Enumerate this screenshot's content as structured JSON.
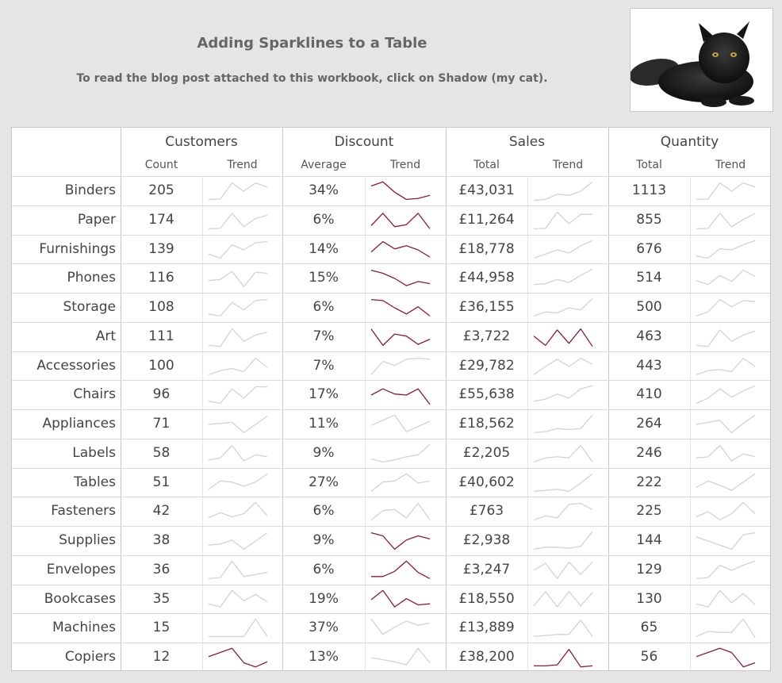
{
  "header": {
    "title": "Adding Sparklines to a Table",
    "subtitle": "To read the blog post attached to this workbook, click on Shadow (my cat)."
  },
  "cat_image": {
    "icon": "cat-photo"
  },
  "colors": {
    "highlight": "#8b1a3e",
    "normal": "#d3d3d3"
  },
  "columns": {
    "customers": "Customers",
    "discount": "Discount",
    "sales": "Sales",
    "quantity": "Quantity",
    "count": "Count",
    "trend": "Trend",
    "average": "Average",
    "total": "Total"
  },
  "rows": [
    {
      "label": "Binders",
      "customers": "205",
      "discount": "34%",
      "sales": "£43,031",
      "quantity": "1113",
      "trend_customers": [
        0.1,
        0.12,
        0.9,
        0.5,
        0.9,
        0.7
      ],
      "hl_customers": false,
      "trend_discount": [
        0.75,
        0.95,
        0.45,
        0.1,
        0.15,
        0.3
      ],
      "hl_discount": true,
      "trend_sales": [
        0.05,
        0.1,
        0.35,
        0.3,
        0.5,
        0.95
      ],
      "hl_sales": false,
      "trend_quantity": [
        0.1,
        0.12,
        0.9,
        0.5,
        0.9,
        0.7
      ],
      "hl_quantity": false
    },
    {
      "label": "Paper",
      "customers": "174",
      "discount": "6%",
      "sales": "£11,264",
      "quantity": "855",
      "trend_customers": [
        0.1,
        0.12,
        0.85,
        0.2,
        0.6,
        0.75
      ],
      "hl_customers": false,
      "trend_discount": [
        0.25,
        0.85,
        0.2,
        0.3,
        0.85,
        0.1
      ],
      "hl_discount": true,
      "trend_sales": [
        0.1,
        0.12,
        0.9,
        0.35,
        0.8,
        0.8
      ],
      "hl_sales": false,
      "trend_quantity": [
        0.1,
        0.12,
        0.85,
        0.2,
        0.55,
        0.85
      ],
      "hl_quantity": false
    },
    {
      "label": "Furnishings",
      "customers": "139",
      "discount": "14%",
      "sales": "£18,778",
      "quantity": "676",
      "trend_customers": [
        0.3,
        0.1,
        0.75,
        0.5,
        0.85,
        0.9
      ],
      "hl_customers": false,
      "trend_discount": [
        0.4,
        0.9,
        0.55,
        0.7,
        0.5,
        0.15
      ],
      "hl_discount": true,
      "trend_sales": [
        0.1,
        0.3,
        0.5,
        0.35,
        0.7,
        0.95
      ],
      "hl_sales": false,
      "trend_quantity": [
        0.2,
        0.1,
        0.55,
        0.5,
        0.75,
        0.95
      ],
      "hl_quantity": false
    },
    {
      "label": "Phones",
      "customers": "116",
      "discount": "15%",
      "sales": "£44,958",
      "quantity": "514",
      "trend_customers": [
        0.4,
        0.45,
        0.85,
        0.1,
        0.8,
        0.75
      ],
      "hl_customers": false,
      "trend_discount": [
        0.9,
        0.75,
        0.5,
        0.15,
        0.35,
        0.25
      ],
      "hl_discount": true,
      "trend_sales": [
        0.2,
        0.25,
        0.45,
        0.3,
        0.65,
        0.95
      ],
      "hl_sales": false,
      "trend_quantity": [
        0.4,
        0.2,
        0.65,
        0.35,
        0.9,
        0.6
      ],
      "hl_quantity": false
    },
    {
      "label": "Storage",
      "customers": "108",
      "discount": "6%",
      "sales": "£36,155",
      "quantity": "500",
      "trend_customers": [
        0.2,
        0.1,
        0.75,
        0.4,
        0.85,
        0.9
      ],
      "hl_customers": false,
      "trend_discount": [
        0.9,
        0.85,
        0.5,
        0.2,
        0.55,
        0.1
      ],
      "hl_discount": true,
      "trend_sales": [
        0.1,
        0.3,
        0.25,
        0.5,
        0.4,
        0.95
      ],
      "hl_sales": false,
      "trend_quantity": [
        0.1,
        0.3,
        0.9,
        0.55,
        0.85,
        0.8
      ],
      "hl_quantity": false
    },
    {
      "label": "Art",
      "customers": "111",
      "discount": "7%",
      "sales": "£3,722",
      "quantity": "463",
      "trend_customers": [
        0.1,
        0.05,
        0.9,
        0.3,
        0.6,
        0.75
      ],
      "hl_customers": false,
      "trend_discount": [
        0.9,
        0.1,
        0.65,
        0.55,
        0.15,
        0.4
      ],
      "hl_discount": true,
      "trend_sales": [
        0.55,
        0.1,
        0.85,
        0.2,
        0.9,
        0.05
      ],
      "hl_sales": true,
      "trend_quantity": [
        0.1,
        0.05,
        0.85,
        0.3,
        0.6,
        0.8
      ],
      "hl_quantity": false
    },
    {
      "label": "Accessories",
      "customers": "100",
      "discount": "7%",
      "sales": "£29,782",
      "quantity": "443",
      "trend_customers": [
        0.1,
        0.3,
        0.4,
        0.25,
        0.9,
        0.45
      ],
      "hl_customers": false,
      "trend_discount": [
        0.1,
        0.75,
        0.55,
        0.85,
        0.9,
        0.85
      ],
      "hl_discount": false,
      "trend_sales": [
        0.1,
        0.5,
        0.85,
        0.5,
        0.9,
        0.6
      ],
      "hl_sales": false,
      "trend_quantity": [
        0.1,
        0.3,
        0.35,
        0.25,
        0.9,
        0.5
      ],
      "hl_quantity": false
    },
    {
      "label": "Chairs",
      "customers": "96",
      "discount": "17%",
      "sales": "£55,638",
      "quantity": "410",
      "trend_customers": [
        0.2,
        0.1,
        0.8,
        0.35,
        0.9,
        0.9
      ],
      "hl_customers": false,
      "trend_discount": [
        0.5,
        0.8,
        0.55,
        0.5,
        0.8,
        0.05
      ],
      "hl_discount": true,
      "trend_sales": [
        0.2,
        0.3,
        0.55,
        0.35,
        0.8,
        0.95
      ],
      "hl_sales": false,
      "trend_quantity": [
        0.1,
        0.35,
        0.8,
        0.4,
        0.7,
        0.95
      ],
      "hl_quantity": false
    },
    {
      "label": "Appliances",
      "customers": "71",
      "discount": "11%",
      "sales": "£18,562",
      "quantity": "264",
      "trend_customers": [
        0.5,
        0.55,
        0.6,
        0.1,
        0.5,
        0.9
      ],
      "hl_customers": false,
      "trend_discount": [
        0.45,
        0.7,
        0.95,
        0.15,
        0.4,
        0.65
      ],
      "hl_discount": false,
      "trend_sales": [
        0.1,
        0.15,
        0.3,
        0.25,
        0.3,
        0.95
      ],
      "hl_sales": false,
      "trend_quantity": [
        0.5,
        0.6,
        0.7,
        0.1,
        0.55,
        0.95
      ],
      "hl_quantity": false
    },
    {
      "label": "Labels",
      "customers": "58",
      "discount": "9%",
      "sales": "£2,205",
      "quantity": "246",
      "trend_customers": [
        0.2,
        0.3,
        0.9,
        0.15,
        0.45,
        0.35
      ],
      "hl_customers": false,
      "trend_discount": [
        0.25,
        0.1,
        0.2,
        0.35,
        0.45,
        0.95
      ],
      "hl_discount": false,
      "trend_sales": [
        0.1,
        0.3,
        0.35,
        0.3,
        0.9,
        0.1
      ],
      "hl_sales": false,
      "trend_quantity": [
        0.3,
        0.35,
        0.9,
        0.15,
        0.5,
        0.35
      ],
      "hl_quantity": false
    },
    {
      "label": "Tables",
      "customers": "51",
      "discount": "27%",
      "sales": "£40,602",
      "quantity": "222",
      "trend_customers": [
        0.2,
        0.6,
        0.55,
        0.35,
        0.55,
        0.95
      ],
      "hl_customers": false,
      "trend_discount": [
        0.1,
        0.55,
        0.6,
        0.95,
        0.5,
        0.6
      ],
      "hl_discount": false,
      "trend_sales": [
        0.1,
        0.15,
        0.2,
        0.1,
        0.5,
        0.95
      ],
      "hl_sales": false,
      "trend_quantity": [
        0.3,
        0.6,
        0.4,
        0.15,
        0.55,
        0.95
      ],
      "hl_quantity": false
    },
    {
      "label": "Fasteners",
      "customers": "42",
      "discount": "6%",
      "sales": "£763",
      "quantity": "225",
      "trend_customers": [
        0.2,
        0.45,
        0.25,
        0.4,
        0.95,
        0.3
      ],
      "hl_customers": false,
      "trend_discount": [
        0.1,
        0.55,
        0.6,
        0.2,
        0.9,
        0.1
      ],
      "hl_discount": false,
      "trend_sales": [
        0.1,
        0.3,
        0.2,
        0.85,
        0.9,
        0.6
      ],
      "hl_sales": false,
      "trend_quantity": [
        0.25,
        0.5,
        0.1,
        0.4,
        0.95,
        0.4
      ],
      "hl_quantity": false
    },
    {
      "label": "Supplies",
      "customers": "38",
      "discount": "9%",
      "sales": "£2,938",
      "quantity": "144",
      "trend_customers": [
        0.3,
        0.35,
        0.55,
        0.1,
        0.5,
        0.9
      ],
      "hl_customers": false,
      "trend_discount": [
        0.9,
        0.75,
        0.1,
        0.55,
        0.75,
        0.6
      ],
      "hl_discount": true,
      "trend_sales": [
        0.1,
        0.2,
        0.2,
        0.15,
        0.25,
        0.95
      ],
      "hl_sales": false,
      "trend_quantity": [
        0.7,
        0.5,
        0.3,
        0.1,
        0.8,
        0.9
      ],
      "hl_quantity": false
    },
    {
      "label": "Envelopes",
      "customers": "36",
      "discount": "6%",
      "sales": "£3,247",
      "quantity": "129",
      "trend_customers": [
        0.1,
        0.15,
        0.95,
        0.2,
        0.3,
        0.4
      ],
      "hl_customers": false,
      "trend_discount": [
        0.2,
        0.2,
        0.45,
        0.95,
        0.4,
        0.1
      ],
      "hl_discount": true,
      "trend_sales": [
        0.5,
        0.85,
        0.1,
        0.9,
        0.3,
        0.9
      ],
      "hl_sales": false,
      "trend_quantity": [
        0.1,
        0.15,
        0.75,
        0.5,
        0.75,
        0.95
      ],
      "hl_quantity": false
    },
    {
      "label": "Bookcases",
      "customers": "35",
      "discount": "19%",
      "sales": "£18,550",
      "quantity": "130",
      "trend_customers": [
        0.3,
        0.15,
        0.95,
        0.45,
        0.75,
        0.4
      ],
      "hl_customers": false,
      "trend_discount": [
        0.5,
        0.95,
        0.15,
        0.55,
        0.25,
        0.3
      ],
      "hl_discount": true,
      "trend_sales": [
        0.2,
        0.9,
        0.15,
        0.9,
        0.2,
        0.85
      ],
      "hl_sales": false,
      "trend_quantity": [
        0.3,
        0.15,
        0.95,
        0.35,
        0.8,
        0.25
      ],
      "hl_quantity": false
    },
    {
      "label": "Machines",
      "customers": "15",
      "discount": "37%",
      "sales": "£13,889",
      "quantity": "65",
      "trend_customers": [
        0.1,
        0.1,
        0.1,
        0.1,
        0.95,
        0.1
      ],
      "hl_customers": false,
      "trend_discount": [
        0.95,
        0.2,
        0.55,
        0.85,
        0.65,
        0.75
      ],
      "hl_discount": false,
      "trend_sales": [
        0.1,
        0.15,
        0.2,
        0.2,
        0.9,
        0.1
      ],
      "hl_sales": false,
      "trend_quantity": [
        0.1,
        0.35,
        0.3,
        0.3,
        0.95,
        0.05
      ],
      "hl_quantity": false
    },
    {
      "label": "Copiers",
      "customers": "12",
      "discount": "13%",
      "sales": "£38,200",
      "quantity": "56",
      "trend_customers": [
        0.55,
        0.75,
        0.95,
        0.25,
        0.05,
        0.3
      ],
      "hl_customers": true,
      "trend_discount": [
        0.5,
        0.4,
        0.3,
        0.15,
        0.95,
        0.25
      ],
      "hl_discount": false,
      "trend_sales": [
        0.1,
        0.1,
        0.15,
        0.9,
        0.05,
        0.1
      ],
      "hl_sales": true,
      "trend_quantity": [
        0.55,
        0.75,
        0.95,
        0.75,
        0.05,
        0.25
      ],
      "hl_quantity": true
    }
  ]
}
